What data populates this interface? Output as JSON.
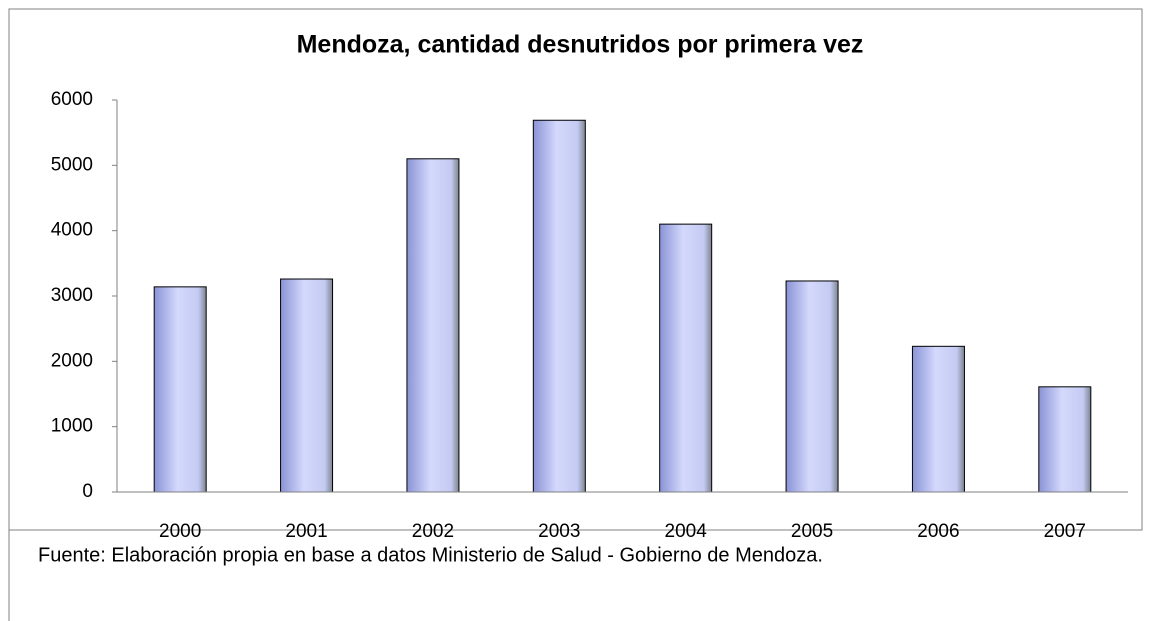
{
  "chart_data": {
    "type": "bar",
    "title": "Mendoza, cantidad desnutridos por primera vez",
    "categories": [
      "2000",
      "2001",
      "2002",
      "2003",
      "2004",
      "2005",
      "2006",
      "2007"
    ],
    "values": [
      3140,
      3260,
      5100,
      5690,
      4100,
      3230,
      2230,
      1610
    ],
    "color": "#d4d9fc",
    "ylim": [
      0,
      6000
    ],
    "yticks": [
      0,
      1000,
      2000,
      3000,
      4000,
      5000,
      6000
    ],
    "grid": false
  },
  "footnote": "Fuente: Elaboración propia en base a datos Ministerio de Salud - Gobierno de Mendoza."
}
